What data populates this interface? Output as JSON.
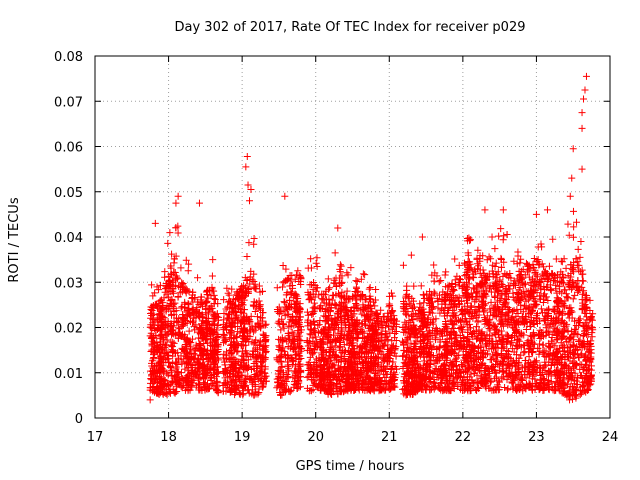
{
  "chart_data": {
    "type": "scatter",
    "title": "Day 302 of 2017, Rate Of TEC Index for receiver p029",
    "xlabel": "GPS time / hours",
    "ylabel": "ROTI / TECUs",
    "xlim": [
      17,
      24
    ],
    "ylim": [
      0,
      0.08
    ],
    "xticks": [
      "17",
      "18",
      "19",
      "20",
      "21",
      "22",
      "23",
      "24"
    ],
    "yticks": [
      "0",
      "0.01",
      "0.02",
      "0.03",
      "0.04",
      "0.05",
      "0.06",
      "0.07",
      "0.08"
    ],
    "grid": true,
    "marker": "plus",
    "color": "#ff0000",
    "highlight_points": [
      {
        "x": 23.68,
        "y": 0.0755
      },
      {
        "x": 23.66,
        "y": 0.0725
      },
      {
        "x": 23.64,
        "y": 0.0705
      },
      {
        "x": 23.62,
        "y": 0.0675
      },
      {
        "x": 23.62,
        "y": 0.064
      },
      {
        "x": 23.5,
        "y": 0.0595
      },
      {
        "x": 23.62,
        "y": 0.055
      },
      {
        "x": 23.48,
        "y": 0.053
      },
      {
        "x": 23.46,
        "y": 0.049
      },
      {
        "x": 19.07,
        "y": 0.0578
      },
      {
        "x": 19.05,
        "y": 0.0555
      },
      {
        "x": 19.08,
        "y": 0.0515
      },
      {
        "x": 19.12,
        "y": 0.0505
      },
      {
        "x": 19.1,
        "y": 0.048
      },
      {
        "x": 18.13,
        "y": 0.049
      },
      {
        "x": 18.1,
        "y": 0.0475
      },
      {
        "x": 18.42,
        "y": 0.0475
      },
      {
        "x": 19.58,
        "y": 0.049
      },
      {
        "x": 17.82,
        "y": 0.043
      },
      {
        "x": 18.6,
        "y": 0.035
      },
      {
        "x": 20.3,
        "y": 0.042
      },
      {
        "x": 22.3,
        "y": 0.046
      },
      {
        "x": 22.55,
        "y": 0.046
      },
      {
        "x": 23.15,
        "y": 0.046
      },
      {
        "x": 23.0,
        "y": 0.045
      },
      {
        "x": 17.75,
        "y": 0.004
      },
      {
        "x": 23.45,
        "y": 0.004
      },
      {
        "x": 21.3,
        "y": 0.036
      },
      {
        "x": 21.45,
        "y": 0.04
      }
    ],
    "density_profile": {
      "x": [
        17.75,
        17.9,
        18.0,
        18.1,
        18.2,
        18.3,
        18.4,
        18.5,
        18.6,
        18.7,
        18.8,
        18.9,
        19.0,
        19.1,
        19.2,
        19.3,
        19.5,
        19.6,
        19.7,
        19.8,
        19.9,
        20.0,
        20.1,
        20.2,
        20.3,
        20.4,
        20.5,
        20.6,
        20.7,
        20.8,
        20.9,
        21.0,
        21.1,
        21.2,
        21.3,
        21.4,
        21.5,
        21.6,
        21.7,
        21.8,
        21.9,
        22.0,
        22.1,
        22.2,
        22.3,
        22.4,
        22.5,
        22.6,
        22.7,
        22.8,
        22.9,
        23.0,
        23.1,
        23.2,
        23.3,
        23.4,
        23.5,
        23.6,
        23.7,
        23.75
      ],
      "y_low": [
        0.006,
        0.005,
        0.005,
        0.005,
        0.006,
        0.006,
        0.006,
        0.006,
        0.007,
        0.005,
        0.006,
        0.005,
        0.005,
        0.005,
        0.005,
        0.007,
        0.005,
        0.005,
        0.006,
        0.007,
        0.006,
        0.006,
        0.006,
        0.005,
        0.005,
        0.006,
        0.006,
        0.006,
        0.006,
        0.006,
        0.006,
        0.006,
        0.007,
        0.005,
        0.005,
        0.006,
        0.006,
        0.006,
        0.006,
        0.006,
        0.006,
        0.006,
        0.006,
        0.006,
        0.006,
        0.006,
        0.006,
        0.006,
        0.006,
        0.006,
        0.006,
        0.006,
        0.006,
        0.006,
        0.006,
        0.005,
        0.004,
        0.005,
        0.006,
        0.008
      ],
      "y_high": [
        0.03,
        0.032,
        0.04,
        0.046,
        0.036,
        0.034,
        0.033,
        0.033,
        0.036,
        0.026,
        0.031,
        0.033,
        0.038,
        0.04,
        0.04,
        0.026,
        0.03,
        0.043,
        0.035,
        0.032,
        0.036,
        0.037,
        0.034,
        0.036,
        0.041,
        0.034,
        0.035,
        0.034,
        0.032,
        0.032,
        0.03,
        0.031,
        0.027,
        0.036,
        0.032,
        0.031,
        0.031,
        0.034,
        0.034,
        0.036,
        0.039,
        0.04,
        0.041,
        0.044,
        0.045,
        0.044,
        0.044,
        0.042,
        0.039,
        0.041,
        0.043,
        0.044,
        0.041,
        0.04,
        0.039,
        0.042,
        0.046,
        0.045,
        0.03,
        0.026
      ],
      "gaps": [
        [
          18.68,
          18.74
        ],
        [
          19.33,
          19.47
        ],
        [
          19.8,
          19.88
        ],
        [
          21.1,
          21.18
        ]
      ]
    }
  }
}
